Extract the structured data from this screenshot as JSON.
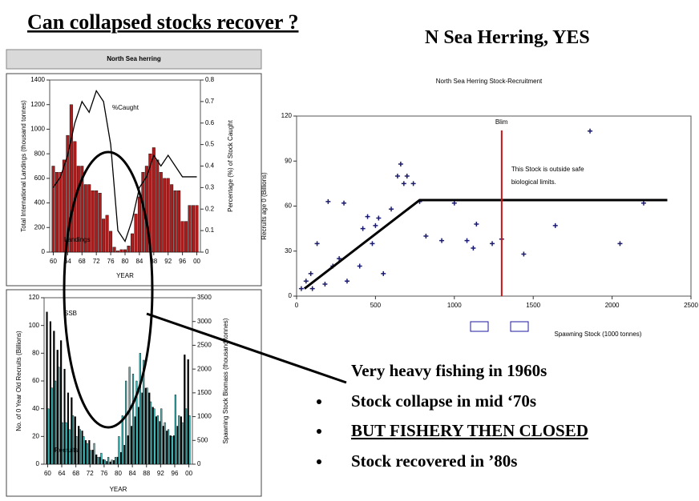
{
  "title": "Can collapsed stocks recover ?",
  "subtitle": "N Sea Herring, YES",
  "bullets": [
    "Very heavy fishing in 1960s",
    "Stock collapse in mid ‘70s",
    "BUT FISHERY THEN CLOSED",
    "Stock recovered in ’80s"
  ],
  "chart_data": [
    {
      "type": "bar",
      "title": "North Sea herring",
      "xlabel": "YEAR",
      "ylabel": "Total International Landings (thousand tonnes)",
      "y2label": "Percentage (%) of Stock Caught",
      "annotations": [
        "%Caught",
        "Landings"
      ],
      "x": [
        1960,
        1961,
        1962,
        1963,
        1964,
        1965,
        1966,
        1967,
        1968,
        1969,
        1970,
        1971,
        1972,
        1973,
        1974,
        1975,
        1976,
        1977,
        1978,
        1979,
        1980,
        1981,
        1982,
        1983,
        1984,
        1985,
        1986,
        1987,
        1988,
        1989,
        1990,
        1991,
        1992,
        1993,
        1994,
        1995,
        1996,
        1997,
        1998,
        1999,
        2000
      ],
      "series": [
        {
          "name": "Landings",
          "color": "#b01c1c",
          "values": [
            700,
            650,
            650,
            750,
            950,
            1200,
            900,
            700,
            700,
            550,
            550,
            500,
            500,
            480,
            270,
            300,
            170,
            40,
            10,
            20,
            20,
            50,
            150,
            310,
            450,
            650,
            700,
            800,
            850,
            750,
            650,
            600,
            600,
            550,
            500,
            500,
            250,
            250,
            380,
            380,
            380
          ]
        },
        {
          "name": "%Caught",
          "type": "line",
          "axis": "y2",
          "color": "#000000",
          "x": [
            1960,
            1962,
            1964,
            1966,
            1968,
            1970,
            1972,
            1974,
            1976,
            1978,
            1980,
            1982,
            1984,
            1986,
            1988,
            1990,
            1992,
            1994,
            1996,
            1998,
            2000
          ],
          "values": [
            0.3,
            0.35,
            0.45,
            0.6,
            0.7,
            0.65,
            0.75,
            0.7,
            0.5,
            0.1,
            0.05,
            0.15,
            0.3,
            0.35,
            0.45,
            0.4,
            0.45,
            0.4,
            0.35,
            0.35,
            0.35
          ]
        }
      ],
      "xlim": [
        1959,
        2001
      ],
      "xticks": [
        {
          "value": 1960,
          "label": "60"
        },
        {
          "value": 1964,
          "label": "64"
        },
        {
          "value": 1968,
          "label": "68"
        },
        {
          "value": 1972,
          "label": "72"
        },
        {
          "value": 1976,
          "label": "76"
        },
        {
          "value": 1980,
          "label": "80"
        },
        {
          "value": 1984,
          "label": "84"
        },
        {
          "value": 1988,
          "label": "88"
        },
        {
          "value": 1992,
          "label": "92"
        },
        {
          "value": 1996,
          "label": "96"
        },
        {
          "value": 2000,
          "label": "00"
        }
      ],
      "ylim": [
        0,
        1400
      ],
      "yticks": [
        0,
        200,
        400,
        600,
        800,
        1000,
        1200,
        1400
      ],
      "y2lim": [
        0,
        0.8
      ],
      "y2ticks": [
        0,
        0.1,
        0.2,
        0.3,
        0.4,
        0.5,
        0.6,
        0.7,
        0.8
      ]
    },
    {
      "type": "bar",
      "xlabel": "YEAR",
      "ylabel": "No. of 0 Year Old Recruits (Billions)",
      "y2label": "Spawning Stock Biomass (thousand tonnes)",
      "annotations": [
        "SSB",
        "Recruits"
      ],
      "x": [
        1960,
        1961,
        1962,
        1963,
        1964,
        1965,
        1966,
        1967,
        1968,
        1969,
        1970,
        1971,
        1972,
        1973,
        1974,
        1975,
        1976,
        1977,
        1978,
        1979,
        1980,
        1981,
        1982,
        1983,
        1984,
        1985,
        1986,
        1987,
        1988,
        1989,
        1990,
        1991,
        1992,
        1993,
        1994,
        1995,
        1996,
        1997,
        1998,
        1999,
        2000
      ],
      "series": [
        {
          "name": "SSB",
          "axis": "y2",
          "color": "#000000",
          "values": [
            3200,
            3000,
            2800,
            2400,
            2600,
            2000,
            1500,
            1400,
            1000,
            800,
            700,
            500,
            500,
            300,
            200,
            150,
            100,
            60,
            50,
            80,
            150,
            250,
            400,
            600,
            800,
            1000,
            1200,
            1500,
            1600,
            1500,
            1200,
            1000,
            900,
            800,
            700,
            600,
            600,
            800,
            1000,
            2300,
            2200
          ]
        },
        {
          "name": "Recruits",
          "color": "#3fb8b8",
          "values": [
            40,
            55,
            60,
            70,
            30,
            30,
            25,
            35,
            20,
            25,
            20,
            15,
            10,
            15,
            5,
            8,
            3,
            5,
            3,
            5,
            20,
            35,
            60,
            70,
            65,
            60,
            80,
            75,
            55,
            45,
            40,
            35,
            40,
            30,
            25,
            20,
            50,
            35,
            30,
            40,
            35
          ]
        }
      ],
      "xlim": [
        1959,
        2001
      ],
      "xticks": [
        {
          "value": 1960,
          "label": "60"
        },
        {
          "value": 1964,
          "label": "64"
        },
        {
          "value": 1968,
          "label": "68"
        },
        {
          "value": 1972,
          "label": "72"
        },
        {
          "value": 1976,
          "label": "76"
        },
        {
          "value": 1980,
          "label": "80"
        },
        {
          "value": 1984,
          "label": "84"
        },
        {
          "value": 1988,
          "label": "88"
        },
        {
          "value": 1992,
          "label": "92"
        },
        {
          "value": 1996,
          "label": "96"
        },
        {
          "value": 2000,
          "label": "00"
        }
      ],
      "ylim": [
        0,
        120
      ],
      "yticks": [
        0,
        20,
        40,
        60,
        80,
        100,
        120
      ],
      "y2lim": [
        0,
        3500
      ],
      "y2ticks": [
        0,
        500,
        1000,
        1500,
        2000,
        2500,
        3000,
        3500
      ]
    },
    {
      "type": "scatter",
      "title": "North Sea Herring Stock-Recruitment",
      "xlabel": "Spawning Stock (1000 tonnes)",
      "ylabel": "Recruits age 0 (Billions)",
      "annotation_lines": [
        "This Stock is outside safe",
        "biological limits."
      ],
      "x": [
        30,
        60,
        90,
        100,
        130,
        180,
        200,
        230,
        270,
        300,
        320,
        400,
        420,
        450,
        480,
        500,
        520,
        550,
        600,
        640,
        660,
        680,
        700,
        740,
        780,
        820,
        920,
        1000,
        1080,
        1120,
        1140,
        1240,
        1300,
        1440,
        1640,
        1860,
        2050,
        2200
      ],
      "values": [
        5,
        10,
        15,
        5,
        35,
        8,
        63,
        20,
        25,
        62,
        10,
        20,
        45,
        53,
        35,
        47,
        52,
        15,
        58,
        80,
        88,
        75,
        80,
        75,
        63,
        40,
        37,
        62,
        37,
        32,
        48,
        35,
        38,
        28,
        47,
        110,
        35,
        62
      ],
      "color": "#1a1a6e",
      "fit": {
        "x": [
          50,
          780,
          2350
        ],
        "y": [
          5,
          64,
          64
        ]
      },
      "blim": {
        "value": 1300,
        "label": "Blim"
      },
      "xlim": [
        0,
        2500
      ],
      "xticks": [
        0,
        500,
        1000,
        1500,
        2000,
        2500
      ],
      "ylim": [
        0,
        120
      ],
      "yticks": [
        0,
        30,
        60,
        90,
        120
      ]
    }
  ]
}
